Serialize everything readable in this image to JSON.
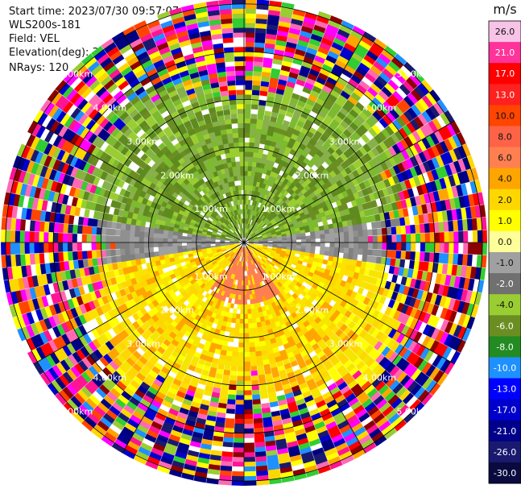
{
  "header": {
    "start_time": "Start time: 2023/07/30 09:57:07",
    "instrument": "WLS200s-181",
    "field": "Field: VEL",
    "elevation": "Elevation(deg): 35.30",
    "nrays": "NRays: 120"
  },
  "chart_data": {
    "type": "ppi",
    "field": "VEL",
    "units": "m/s",
    "nrays": 120,
    "elevation_deg": 35.3,
    "range_rings_km": [
      1.0,
      2.0,
      3.0,
      4.0,
      5.0
    ],
    "range_ring_labels": [
      "1.00km",
      "2.00km",
      "3.00km",
      "4.00km",
      "5.00km"
    ],
    "max_range_km": 5.1,
    "colorbar": {
      "label": "m/s",
      "ticks": [
        "26.0",
        "21.0",
        "17.0",
        "13.0",
        "10.0",
        "8.0",
        "6.0",
        "4.0",
        "2.0",
        "1.0",
        "0.0",
        "-1.0",
        "-2.0",
        "-4.0",
        "-6.0",
        "-8.0",
        "-10.0",
        "-13.0",
        "-17.0",
        "-21.0",
        "-26.0",
        "-30.0"
      ],
      "colors": [
        "#f7c3e6",
        "#ff3399",
        "#ff0000",
        "#ff2020",
        "#ff4500",
        "#ff6347",
        "#ff7f50",
        "#ffa500",
        "#ffd700",
        "#ffff00",
        "#ffff99",
        "#a0a0a0",
        "#707070",
        "#9acd32",
        "#6b8e23",
        "#228b22",
        "#1e90ff",
        "#0000ff",
        "#0000cd",
        "#00008b",
        "#191970",
        "#0a0a40"
      ]
    },
    "wind_pattern": {
      "approach_sector_deg": [
        300,
        60
      ],
      "recede_sector_deg": [
        120,
        240
      ]
    }
  }
}
